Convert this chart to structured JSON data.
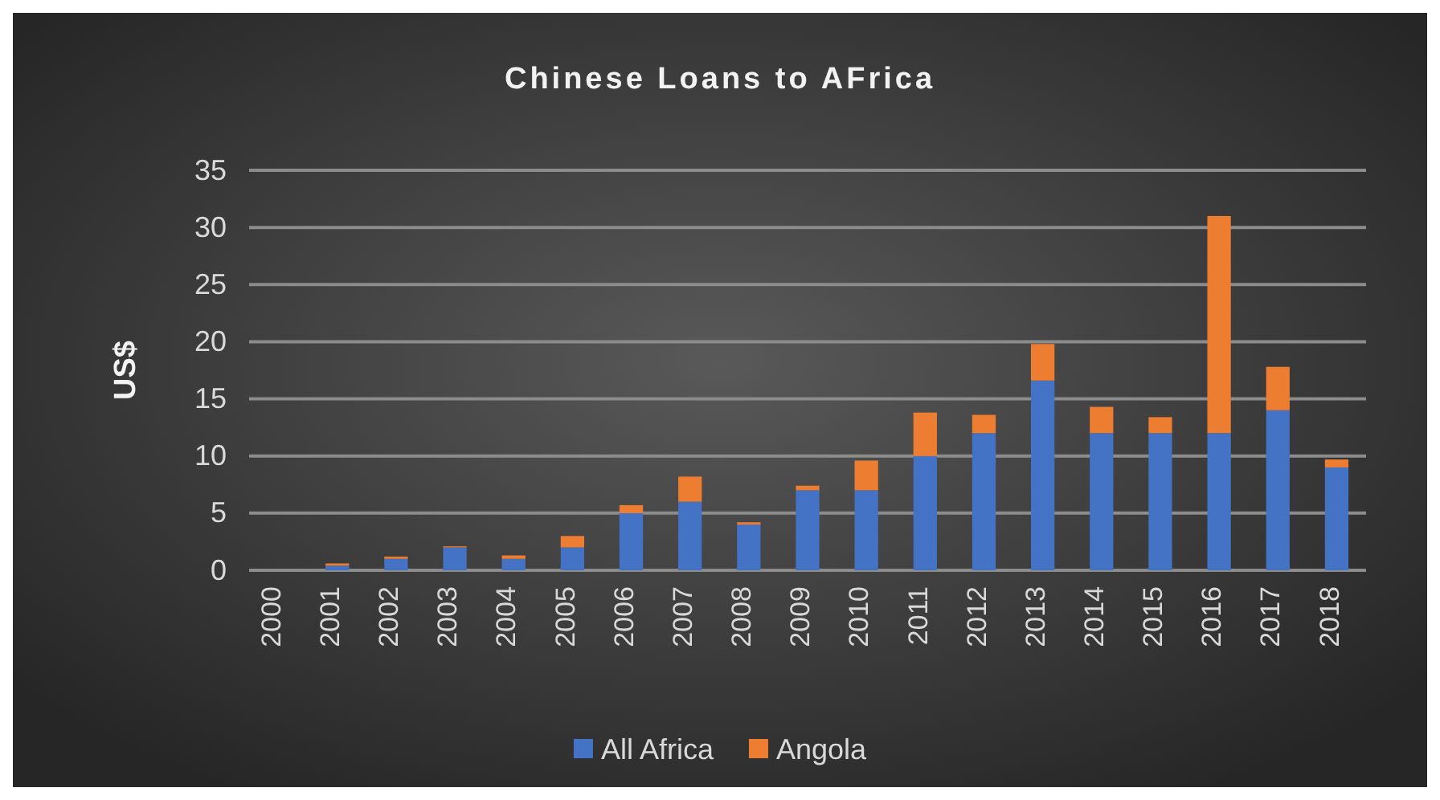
{
  "chart_data": {
    "type": "bar",
    "title": "Chinese Loans to AFrica",
    "ylabel": "US$",
    "stacked": true,
    "grid": "y",
    "legend": "bottom",
    "categories": [
      "2000",
      "2001",
      "2002",
      "2003",
      "2004",
      "2005",
      "2006",
      "2007",
      "2008",
      "2009",
      "2010",
      "2011",
      "2012",
      "2013",
      "2014",
      "2015",
      "2016",
      "2017",
      "2018"
    ],
    "series": [
      {
        "name": "All Africa",
        "color": "#4472c4",
        "values": [
          0,
          0.4,
          1,
          2,
          1,
          2,
          5,
          6,
          4,
          7,
          7,
          10,
          12,
          16.6,
          12,
          12,
          12,
          14,
          9
        ]
      },
      {
        "name": "Angola",
        "color": "#ed7d31",
        "values": [
          0,
          0.2,
          0.2,
          0.1,
          0.3,
          1,
          0.7,
          2.2,
          0.2,
          0.4,
          2.6,
          3.8,
          1.6,
          3.2,
          2.3,
          1.4,
          19,
          3.8,
          0.7
        ]
      }
    ],
    "ylim": [
      0,
      35
    ],
    "yticks": [
      0,
      5,
      10,
      15,
      20,
      25,
      30,
      35
    ]
  }
}
